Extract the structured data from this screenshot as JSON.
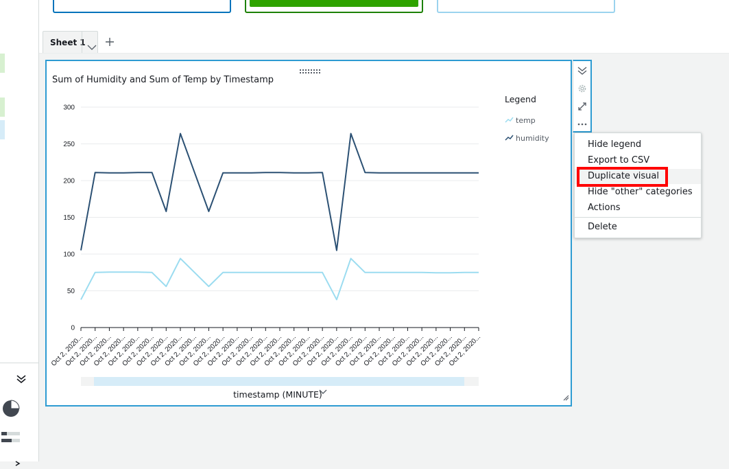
{
  "sheet_tabs": [
    {
      "label": "Sheet 1"
    }
  ],
  "visual": {
    "title": "Sum of Humidity and Sum of Temp by Timestamp",
    "x_axis_title": "timestamp (MINUTE)"
  },
  "legend": {
    "title": "Legend",
    "items": [
      {
        "label": "temp",
        "color": "#9bdcf0"
      },
      {
        "label": "humidity",
        "color": "#2b5073"
      }
    ]
  },
  "context_menu": {
    "items": [
      {
        "label": "Hide legend"
      },
      {
        "label": "Export to CSV"
      },
      {
        "label": "Duplicate visual"
      },
      {
        "label": "Hide \"other\" categories"
      },
      {
        "label": "Actions"
      },
      {
        "label": "Delete"
      }
    ]
  },
  "icons": {
    "sheet_dropdown": "chevron-down-icon",
    "add_sheet": "plus-icon",
    "collapse": "double-chevron-down-icon",
    "settings": "gear-icon",
    "expand": "expand-icon",
    "more": "more-options-icon",
    "axis_dropdown": "chevron-down-icon"
  },
  "colors": {
    "selected_border": "#2d9bd2",
    "highlight": "#ff0000",
    "temp": "#9bdcf0",
    "humidity": "#2b5073"
  },
  "chart_data": {
    "type": "line",
    "title": "Sum of Humidity and Sum of Temp by Timestamp",
    "xlabel": "timestamp (MINUTE)",
    "ylabel": "",
    "ylim": [
      0,
      300
    ],
    "yticks": [
      0,
      50,
      100,
      150,
      200,
      250,
      300
    ],
    "x_tick_label": "Oct 2, 2020...",
    "x_count": 29,
    "grid": true,
    "legend_position": "right",
    "series": [
      {
        "name": "temp",
        "color": "#9bdcf0",
        "values": [
          38,
          75,
          75.5,
          75.5,
          75.5,
          75,
          56,
          94,
          75,
          56,
          75,
          75,
          75,
          75,
          75,
          75,
          75,
          75,
          38,
          94,
          75,
          75,
          75,
          75,
          75,
          74.5,
          74.5,
          75,
          75
        ]
      },
      {
        "name": "humidity",
        "color": "#2b5073",
        "values": [
          105,
          211,
          210.5,
          210.5,
          211,
          211,
          158,
          264,
          211,
          158,
          210.5,
          210.5,
          210.5,
          211,
          211,
          210.5,
          210.5,
          211,
          105,
          264,
          211,
          210.5,
          210.5,
          210.5,
          210.5,
          210.5,
          210.5,
          210.5,
          210.5
        ]
      }
    ]
  }
}
